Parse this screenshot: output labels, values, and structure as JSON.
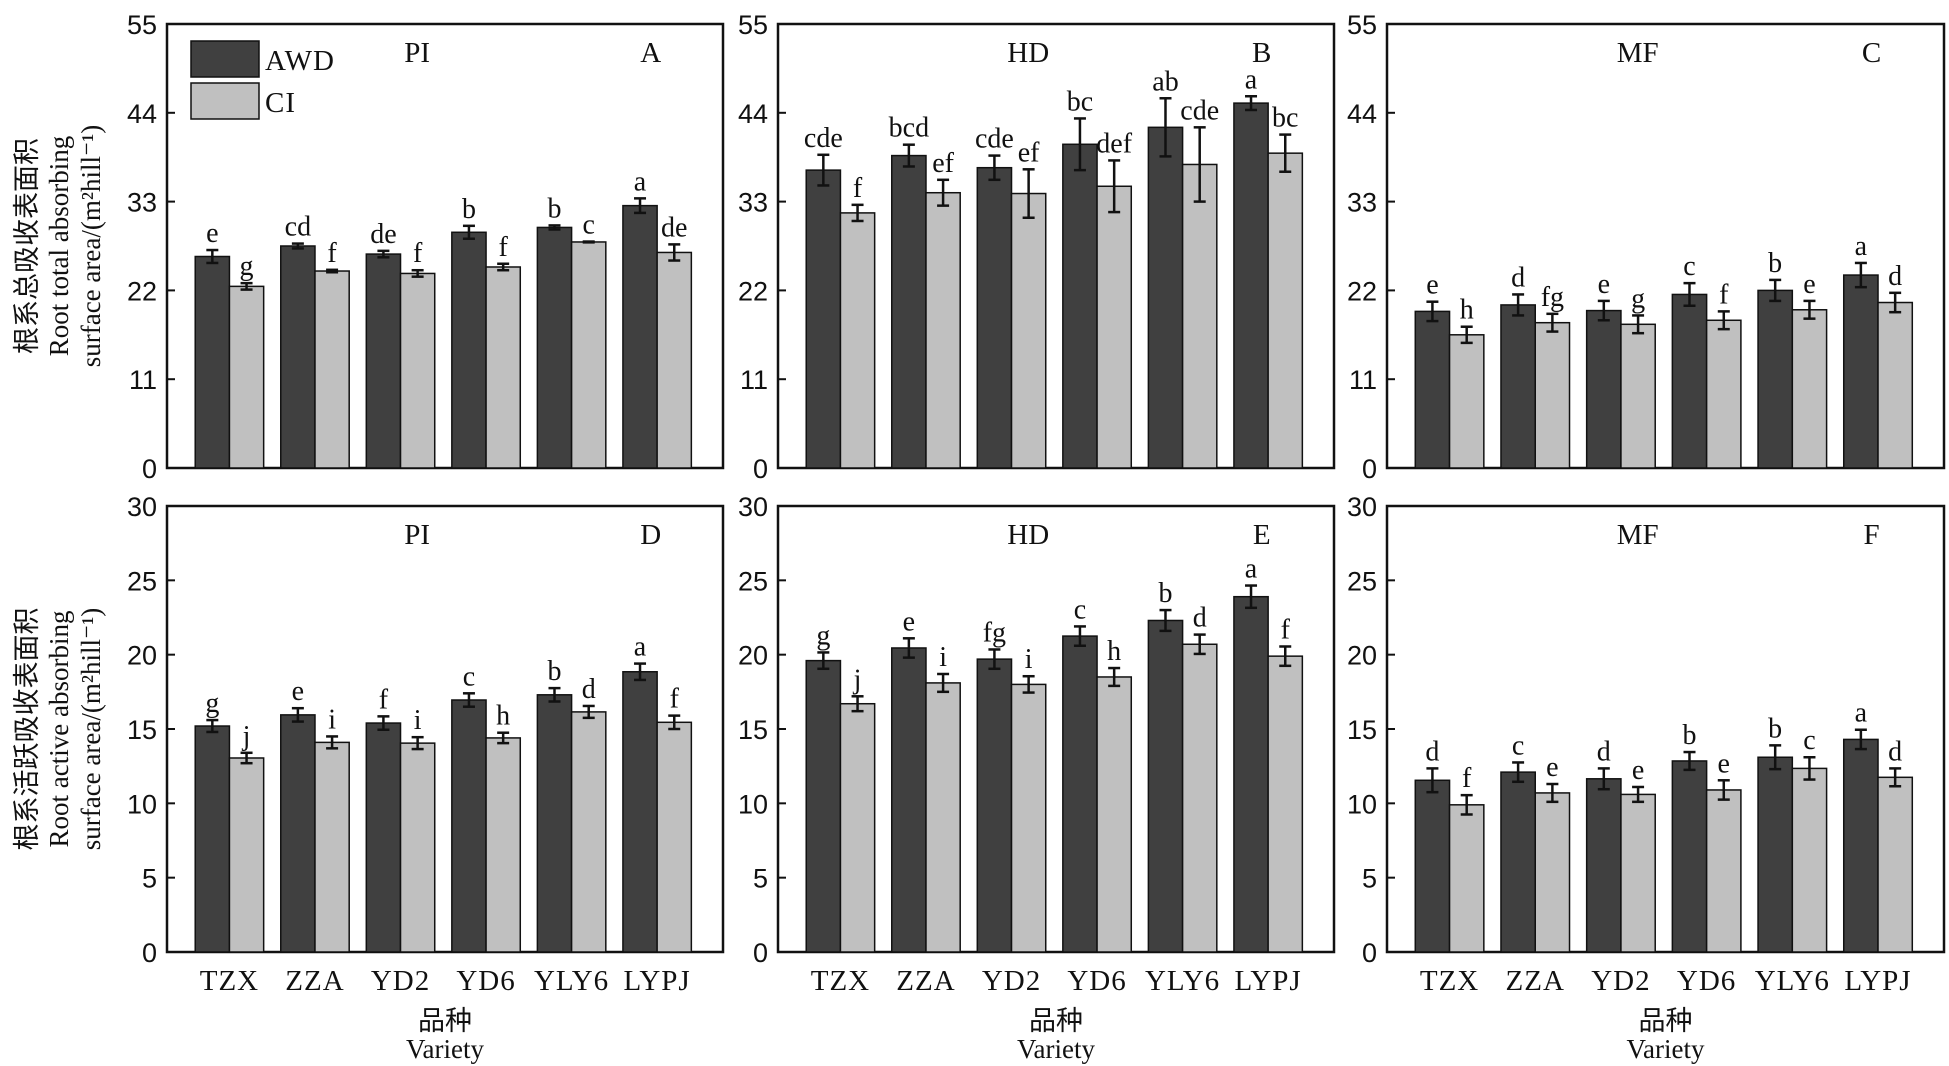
{
  "chart_data": [
    {
      "type": "bar",
      "panel_letter": "A",
      "stage": "PI",
      "row": "top",
      "col": 0,
      "ylabel_zh": "根系总吸收表面积",
      "ylabel_en_1": "Root total absorbing",
      "ylabel_en_2": "surface area/(m²hill⁻¹)",
      "ylim": [
        0,
        55
      ],
      "yticks": [
        0,
        11,
        22,
        33,
        44,
        55
      ],
      "categories": [
        "TZX",
        "ZZA",
        "YD2",
        "YD6",
        "YLY6",
        "LYPJ"
      ],
      "show_xticklabels": false,
      "series": [
        {
          "name": "AWD",
          "values": [
            26.2,
            27.5,
            26.5,
            29.2,
            29.8,
            32.5
          ],
          "errors": [
            0.8,
            0.3,
            0.4,
            0.8,
            0.25,
            0.9
          ],
          "letters": [
            "e",
            "cd",
            "de",
            "b",
            "b",
            "a"
          ]
        },
        {
          "name": "CI",
          "values": [
            22.5,
            24.4,
            24.1,
            24.9,
            28.0,
            26.7
          ],
          "errors": [
            0.4,
            0.15,
            0.4,
            0.4,
            0.05,
            1.0
          ],
          "letters": [
            "g",
            "f",
            "f",
            "f",
            "c",
            "de"
          ]
        }
      ],
      "legend": true
    },
    {
      "type": "bar",
      "panel_letter": "B",
      "stage": "HD",
      "row": "top",
      "col": 1,
      "ylim": [
        0,
        55
      ],
      "yticks": [
        0,
        11,
        22,
        33,
        44,
        55
      ],
      "categories": [
        "TZX",
        "ZZA",
        "YD2",
        "YD6",
        "YLY6",
        "LYPJ"
      ],
      "show_xticklabels": false,
      "series": [
        {
          "name": "AWD",
          "values": [
            36.9,
            38.7,
            37.2,
            40.1,
            42.2,
            45.2
          ],
          "errors": [
            1.9,
            1.35,
            1.5,
            3.2,
            3.6,
            0.85
          ],
          "letters": [
            "cde",
            "bcd",
            "cde",
            "bc",
            "ab",
            "a"
          ]
        },
        {
          "name": "CI",
          "values": [
            31.6,
            34.1,
            34.0,
            34.9,
            37.6,
            39.0
          ],
          "errors": [
            1.0,
            1.6,
            3.0,
            3.2,
            4.6,
            2.3
          ],
          "letters": [
            "f",
            "ef",
            "ef",
            "def",
            "cde",
            "bc"
          ]
        }
      ],
      "legend": false
    },
    {
      "type": "bar",
      "panel_letter": "C",
      "stage": "MF",
      "row": "top",
      "col": 2,
      "ylim": [
        0,
        55
      ],
      "yticks": [
        0,
        11,
        22,
        33,
        44,
        55
      ],
      "categories": [
        "TZX",
        "ZZA",
        "YD2",
        "YD6",
        "YLY6",
        "LYPJ"
      ],
      "show_xticklabels": false,
      "series": [
        {
          "name": "AWD",
          "values": [
            19.4,
            20.2,
            19.5,
            21.5,
            22.0,
            23.9
          ],
          "errors": [
            1.2,
            1.3,
            1.2,
            1.4,
            1.3,
            1.5
          ],
          "letters": [
            "e",
            "d",
            "e",
            "c",
            "b",
            "a"
          ]
        },
        {
          "name": "CI",
          "values": [
            16.5,
            18.0,
            17.8,
            18.3,
            19.6,
            20.5
          ],
          "errors": [
            1.0,
            1.1,
            1.1,
            1.1,
            1.1,
            1.2
          ],
          "letters": [
            "h",
            "fg",
            "g",
            "f",
            "e",
            "d"
          ]
        }
      ],
      "legend": false
    },
    {
      "type": "bar",
      "panel_letter": "D",
      "stage": "PI",
      "row": "bottom",
      "col": 0,
      "ylabel_zh": "根系活跃吸收表面积",
      "ylabel_en_1": "Root active absorbing",
      "ylabel_en_2": "surface area/(m²hill⁻¹)",
      "ylim": [
        0,
        30
      ],
      "yticks": [
        0,
        5,
        10,
        15,
        20,
        25,
        30
      ],
      "categories": [
        "TZX",
        "ZZA",
        "YD2",
        "YD6",
        "YLY6",
        "LYPJ"
      ],
      "show_xticklabels": true,
      "xlabel_zh": "品种",
      "xlabel_en": "Variety",
      "series": [
        {
          "name": "AWD",
          "values": [
            15.2,
            15.95,
            15.4,
            16.95,
            17.3,
            18.85
          ],
          "errors": [
            0.4,
            0.45,
            0.45,
            0.45,
            0.45,
            0.55
          ],
          "letters": [
            "g",
            "e",
            "f",
            "c",
            "b",
            "a"
          ]
        },
        {
          "name": "CI",
          "values": [
            13.05,
            14.1,
            14.05,
            14.4,
            16.15,
            15.45
          ],
          "errors": [
            0.35,
            0.4,
            0.4,
            0.35,
            0.4,
            0.45
          ],
          "letters": [
            "j",
            "i",
            "i",
            "h",
            "d",
            "f"
          ]
        }
      ],
      "legend": false
    },
    {
      "type": "bar",
      "panel_letter": "E",
      "stage": "HD",
      "row": "bottom",
      "col": 1,
      "ylim": [
        0,
        30
      ],
      "yticks": [
        0,
        5,
        10,
        15,
        20,
        25,
        30
      ],
      "categories": [
        "TZX",
        "ZZA",
        "YD2",
        "YD6",
        "YLY6",
        "LYPJ"
      ],
      "show_xticklabels": true,
      "xlabel_zh": "品种",
      "xlabel_en": "Variety",
      "series": [
        {
          "name": "AWD",
          "values": [
            19.6,
            20.45,
            19.7,
            21.25,
            22.3,
            23.9
          ],
          "errors": [
            0.55,
            0.65,
            0.65,
            0.65,
            0.7,
            0.75
          ],
          "letters": [
            "g",
            "e",
            "fg",
            "c",
            "b",
            "a"
          ]
        },
        {
          "name": "CI",
          "values": [
            16.7,
            18.1,
            18.0,
            18.5,
            20.7,
            19.9
          ],
          "errors": [
            0.5,
            0.6,
            0.55,
            0.6,
            0.65,
            0.65
          ],
          "letters": [
            "j",
            "i",
            "i",
            "h",
            "d",
            "f"
          ]
        }
      ],
      "legend": false
    },
    {
      "type": "bar",
      "panel_letter": "F",
      "stage": "MF",
      "row": "bottom",
      "col": 2,
      "ylim": [
        0,
        30
      ],
      "yticks": [
        0,
        5,
        10,
        15,
        20,
        25,
        30
      ],
      "categories": [
        "TZX",
        "ZZA",
        "YD2",
        "YD6",
        "YLY6",
        "LYPJ"
      ],
      "show_xticklabels": true,
      "xlabel_zh": "品种",
      "xlabel_en": "Variety",
      "series": [
        {
          "name": "AWD",
          "values": [
            11.55,
            12.1,
            11.65,
            12.85,
            13.1,
            14.3
          ],
          "errors": [
            0.8,
            0.65,
            0.7,
            0.6,
            0.8,
            0.65
          ],
          "letters": [
            "d",
            "c",
            "d",
            "b",
            "b",
            "a"
          ]
        },
        {
          "name": "CI",
          "values": [
            9.9,
            10.7,
            10.6,
            10.9,
            12.35,
            11.75
          ],
          "errors": [
            0.65,
            0.6,
            0.5,
            0.65,
            0.75,
            0.6
          ],
          "letters": [
            "f",
            "e",
            "e",
            "e",
            "c",
            "d"
          ]
        }
      ],
      "legend": false
    }
  ],
  "legend": {
    "items": [
      {
        "name": "AWD",
        "color": "#404040"
      },
      {
        "name": "CI",
        "color": "#c0c0c0"
      }
    ]
  },
  "colors": {
    "AWD": "#404040",
    "CI": "#c0c0c0",
    "axis": "#111111"
  }
}
